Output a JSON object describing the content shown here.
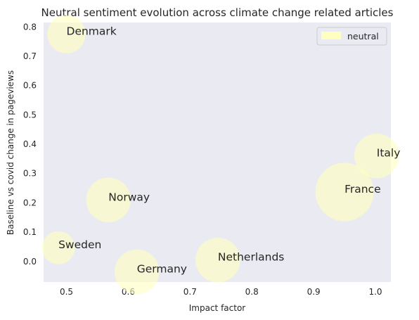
{
  "chart_data": {
    "type": "scatter",
    "title": "Neutral sentiment evolution across climate change related articles",
    "xlabel": "Impact factor",
    "ylabel": "Baseline vs covid change in pageviews",
    "xlim": [
      0.463,
      1.025
    ],
    "ylim": [
      -0.07,
      0.815
    ],
    "xticks": [
      "0.5",
      "0.6",
      "0.7",
      "0.8",
      "0.9",
      "1.0"
    ],
    "yticks": [
      "0.0",
      "0.1",
      "0.2",
      "0.3",
      "0.4",
      "0.5",
      "0.6",
      "0.7",
      "0.8"
    ],
    "grid": false,
    "background_color": "#eaeaf2",
    "legend": {
      "placement": "top-right",
      "entries": [
        "neutral"
      ]
    },
    "series": [
      {
        "name": "neutral",
        "color": "#ffffc0",
        "points": [
          {
            "label": "Denmark",
            "x": 0.5,
            "y": 0.775,
            "size": 0.42
          },
          {
            "label": "Norway",
            "x": 0.568,
            "y": 0.21,
            "size": 0.55
          },
          {
            "label": "Sweden",
            "x": 0.487,
            "y": 0.047,
            "size": 0.32
          },
          {
            "label": "Germany",
            "x": 0.614,
            "y": -0.035,
            "size": 0.55
          },
          {
            "label": "Netherlands",
            "x": 0.745,
            "y": 0.005,
            "size": 0.55
          },
          {
            "label": "France",
            "x": 0.95,
            "y": 0.237,
            "size": 0.82
          },
          {
            "label": "Italy",
            "x": 1.002,
            "y": 0.36,
            "size": 0.55
          }
        ]
      }
    ]
  }
}
